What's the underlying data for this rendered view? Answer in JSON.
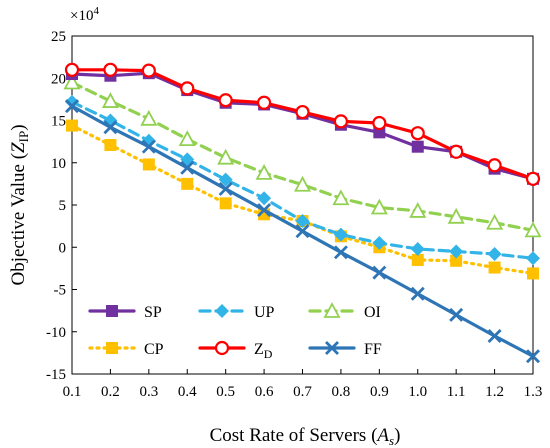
{
  "chart_data": {
    "type": "line",
    "title": "",
    "xlabel_main": "Cost Rate of Servers (",
    "xlabel_var": "A",
    "xlabel_sub": "s",
    "xlabel_end": ")",
    "ylabel_main": "Objective Value (",
    "ylabel_var": "Z",
    "ylabel_sub": "IP",
    "ylabel_end": ")",
    "y_multiplier_base": "×10",
    "y_multiplier_exp": "4",
    "x": [
      0.1,
      0.2,
      0.3,
      0.4,
      0.5,
      0.6,
      0.7,
      0.8,
      0.9,
      1.0,
      1.1,
      1.2,
      1.3
    ],
    "x_tick_labels": [
      "0.1",
      "0.2",
      "0.3",
      "0.4",
      "0.5",
      "0.6",
      "0.7",
      "0.8",
      "0.9",
      "1.0",
      "1.1",
      "1.2",
      "1.3"
    ],
    "ylim": [
      -15,
      25
    ],
    "y_ticks": [
      25,
      20,
      15,
      10,
      5,
      0,
      -5,
      -10,
      -15
    ],
    "y_tick_labels": [
      "25",
      "20",
      "15",
      "10",
      "5",
      "0",
      "-5",
      "-10",
      "-15"
    ],
    "grid": false,
    "legend_position": "bottom-left",
    "series": [
      {
        "name": "SP",
        "color": "#7030a0",
        "marker": "square",
        "dash": "solid",
        "values": [
          20.5,
          20.3,
          20.6,
          18.6,
          17.1,
          16.9,
          15.8,
          14.5,
          13.6,
          11.9,
          11.3,
          9.3,
          8.1
        ]
      },
      {
        "name": "UP",
        "color": "#33b4e8",
        "marker": "diamond",
        "dash": "dashed",
        "values": [
          17.2,
          15.0,
          12.6,
          10.4,
          8.0,
          5.8,
          3.1,
          1.5,
          0.5,
          -0.2,
          -0.5,
          -0.8,
          -1.3
        ]
      },
      {
        "name": "OI",
        "color": "#92d050",
        "marker": "triangle",
        "dash": "dashed",
        "values": [
          19.5,
          17.3,
          15.2,
          12.8,
          10.6,
          8.8,
          7.4,
          5.8,
          4.7,
          4.3,
          3.6,
          2.9,
          2.0
        ]
      },
      {
        "name": "CP",
        "color": "#ffc000",
        "marker": "square",
        "dash": "dotted",
        "values": [
          14.4,
          12.1,
          9.8,
          7.5,
          5.2,
          3.9,
          3.1,
          1.3,
          0.0,
          -1.5,
          -1.6,
          -2.4,
          -3.1
        ]
      },
      {
        "name": "Z",
        "name_sub": "D",
        "color": "#ff0000",
        "marker": "circle",
        "dash": "solid",
        "values": [
          21.0,
          21.0,
          20.9,
          18.8,
          17.4,
          17.1,
          16.0,
          14.9,
          14.7,
          13.5,
          11.3,
          9.7,
          8.1
        ]
      },
      {
        "name": "FF",
        "color": "#2e75b6",
        "marker": "x",
        "dash": "solid",
        "values": [
          16.7,
          14.2,
          11.9,
          9.4,
          6.9,
          4.4,
          1.9,
          -0.6,
          -3.0,
          -5.5,
          -8.0,
          -10.5,
          -12.9
        ]
      }
    ]
  }
}
